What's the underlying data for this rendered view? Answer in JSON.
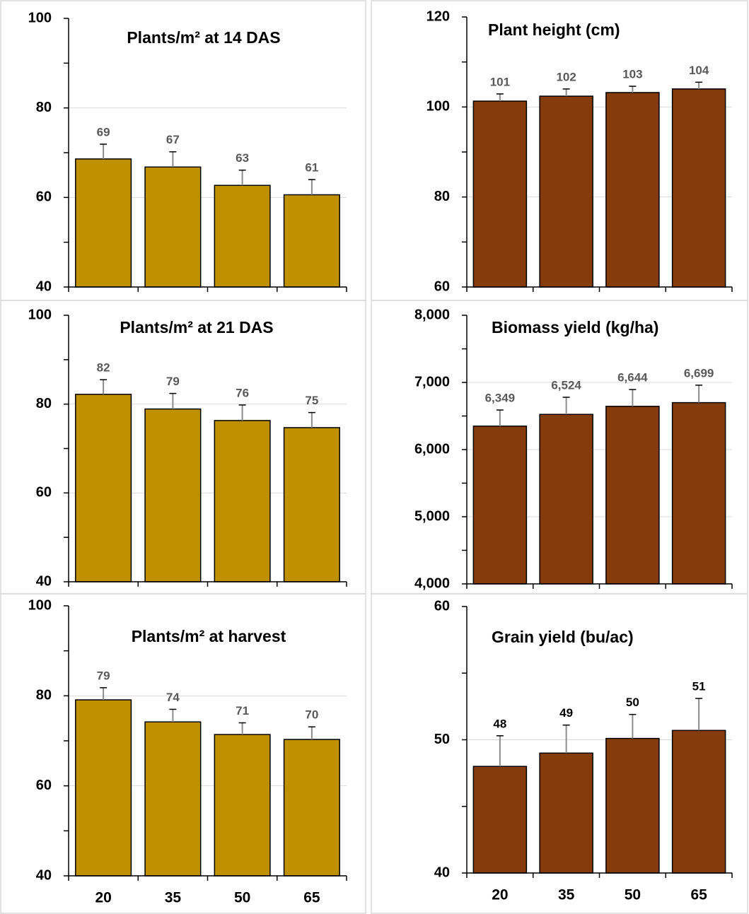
{
  "chart_data": [
    {
      "type": "bar",
      "title": "Plants/m² at 14 DAS",
      "categories": [
        null,
        null,
        null,
        null
      ],
      "values": [
        68.6,
        66.8,
        62.7,
        60.6
      ],
      "value_labels": [
        "69",
        "67",
        "63",
        "61"
      ],
      "errors": [
        3.3,
        3.4,
        3.4,
        3.4
      ],
      "color": "#bf9000",
      "label_color": "#595959",
      "ylim": [
        40,
        100
      ],
      "yticks": [
        40,
        60,
        80,
        100
      ],
      "yminorticks": [
        50,
        70,
        90
      ],
      "grid": true
    },
    {
      "type": "bar",
      "title": "Plant height (cm)",
      "categories": [
        null,
        null,
        null,
        null
      ],
      "values": [
        101.3,
        102.4,
        103.2,
        104.0
      ],
      "value_labels": [
        "101",
        "102",
        "103",
        "104"
      ],
      "errors": [
        1.6,
        1.6,
        1.4,
        1.5
      ],
      "color": "#843c0c",
      "label_color": "#595959",
      "ylim": [
        60,
        120
      ],
      "yticks": [
        60,
        80,
        100,
        120
      ],
      "yminorticks": [
        70,
        90,
        110
      ],
      "grid": true
    },
    {
      "type": "bar",
      "title": "Plants/m² at 21 DAS",
      "categories": [
        null,
        null,
        null,
        null
      ],
      "values": [
        82.2,
        78.9,
        76.3,
        74.7
      ],
      "value_labels": [
        "82",
        "79",
        "76",
        "75"
      ],
      "errors": [
        3.3,
        3.5,
        3.5,
        3.4
      ],
      "color": "#bf9000",
      "label_color": "#595959",
      "ylim": [
        40,
        100
      ],
      "yticks": [
        40,
        60,
        80,
        100
      ],
      "yminorticks": [
        50,
        70,
        90
      ],
      "grid": true
    },
    {
      "type": "bar",
      "title": "Biomass yield (kg/ha)",
      "categories": [
        null,
        null,
        null,
        null
      ],
      "values": [
        6349,
        6524,
        6644,
        6699
      ],
      "value_labels": [
        "6,349",
        "6,524",
        "6,644",
        "6,699"
      ],
      "errors": [
        240,
        255,
        250,
        260
      ],
      "color": "#843c0c",
      "label_color": "#595959",
      "ylim": [
        4000,
        8000
      ],
      "yticks": [
        {
          "value": 4000,
          "label": "4,000"
        },
        {
          "value": 5000,
          "label": "5,000"
        },
        {
          "value": 6000,
          "label": "6,000"
        },
        {
          "value": 7000,
          "label": "7,000"
        },
        {
          "value": 8000,
          "label": "8,000"
        }
      ],
      "yminorticks": [
        4500,
        5500,
        6500,
        7500
      ],
      "grid": true
    },
    {
      "type": "bar",
      "title": "Plants/m² at harvest",
      "categories": [
        "20",
        "35",
        "50",
        "65"
      ],
      "values": [
        79.1,
        74.2,
        71.4,
        70.3
      ],
      "value_labels": [
        "79",
        "74",
        "71",
        "70"
      ],
      "errors": [
        2.7,
        2.8,
        2.6,
        2.8
      ],
      "color": "#bf9000",
      "label_color": "#595959",
      "ylim": [
        40,
        100
      ],
      "yticks": [
        40,
        60,
        80,
        100
      ],
      "yminorticks": [
        50,
        70,
        90
      ],
      "grid": true
    },
    {
      "type": "bar",
      "title": "Grain yield (bu/ac)",
      "categories": [
        "20",
        "35",
        "50",
        "65"
      ],
      "values": [
        48.0,
        49.0,
        50.1,
        50.7
      ],
      "value_labels": [
        "48",
        "49",
        "50",
        "51"
      ],
      "errors": [
        2.3,
        2.1,
        1.8,
        2.4
      ],
      "color": "#843c0c",
      "label_color": "#000000",
      "ylim": [
        40,
        60
      ],
      "yticks": [
        40,
        50,
        60
      ],
      "yminorticks": [
        45,
        55
      ],
      "grid": true
    }
  ]
}
